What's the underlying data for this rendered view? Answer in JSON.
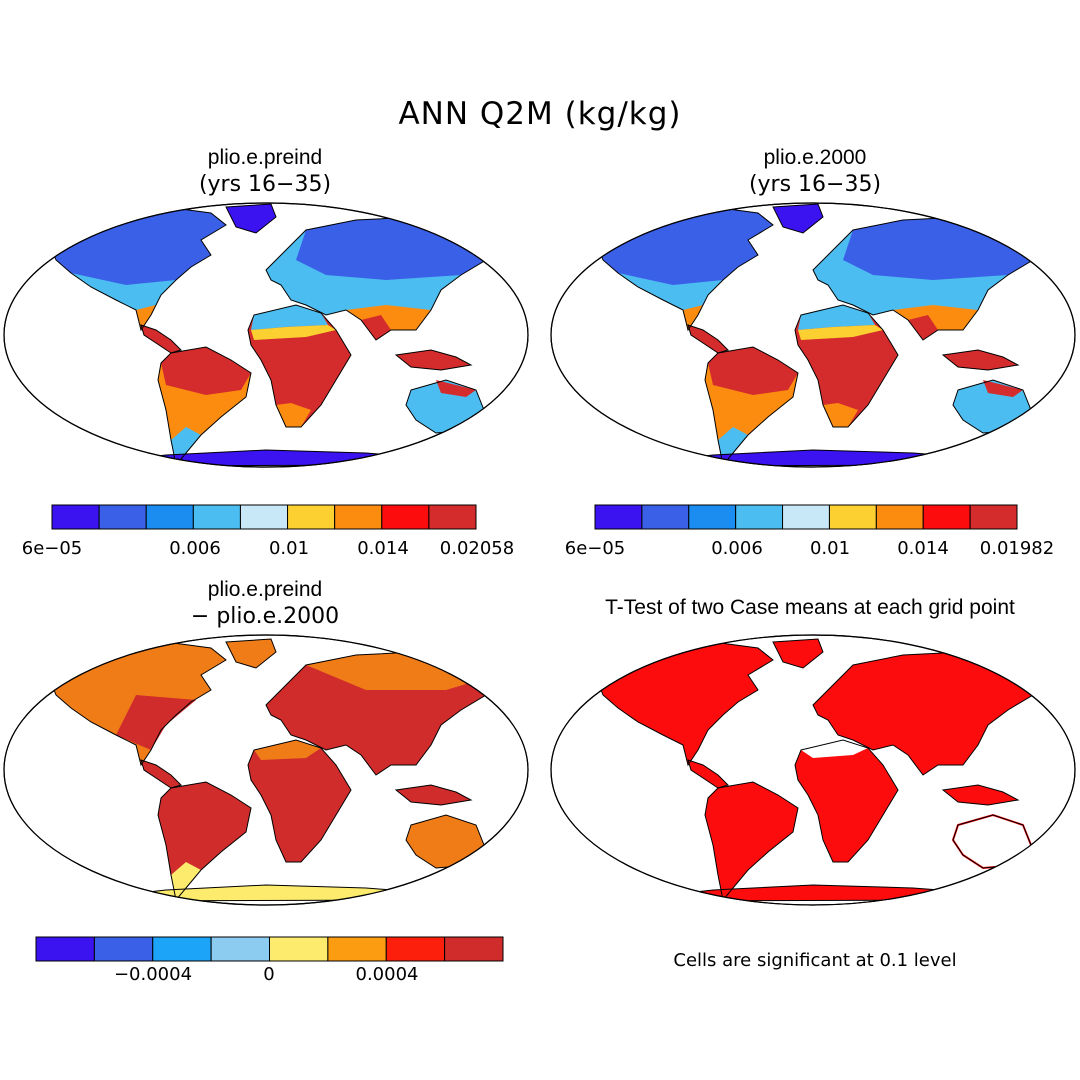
{
  "figure_title": "ANN Q2M (kg/kg)",
  "panels": [
    {
      "title": "plio.e.preind",
      "subtitle": "(yrs 16−35)",
      "field": "humidity"
    },
    {
      "title": "plio.e.2000",
      "subtitle": "(yrs 16−35)",
      "field": "humidity"
    },
    {
      "title": "plio.e.preind",
      "subtitle": "− plio.e.2000",
      "field": "difference"
    },
    {
      "title": "T-Test of two Case means at each grid point",
      "subtitle": "",
      "field": "significance"
    }
  ],
  "colorbars": [
    {
      "colors": [
        "#3b12f0",
        "#3b60e8",
        "#1c8df0",
        "#4cbdf0",
        "#c8e8f8",
        "#fcd030",
        "#fc8c10",
        "#fc0c0c",
        "#d42c2c"
      ],
      "labels": [
        "6e−05",
        "0.006",
        "0.01",
        "0.014",
        "0.02058"
      ]
    },
    {
      "colors": [
        "#3b12f0",
        "#3b60e8",
        "#1c8df0",
        "#4cbdf0",
        "#c8e8f8",
        "#fcd030",
        "#fc8c10",
        "#fc0c0c",
        "#d42c2c"
      ],
      "labels": [
        "6e−05",
        "0.006",
        "0.01",
        "0.014",
        "0.01982"
      ]
    },
    {
      "colors": [
        "#3b12f0",
        "#3b60e8",
        "#1ca4f8",
        "#8cccf0",
        "#fceb6c",
        "#fc9c10",
        "#fc200c",
        "#d02c2c"
      ],
      "labels": [
        "−0.0004",
        "0",
        "0.0004"
      ]
    }
  ],
  "significance_note": "Cells are significant at 0.1 level",
  "colors": {
    "land_warm": "#d42c2c",
    "land_orange": "#fc8c10",
    "land_yellow": "#fcd030",
    "land_lightblue": "#4cbdf0",
    "land_blue": "#3b60e8",
    "land_deepblue": "#3b12f0",
    "diff_red": "#d02c2c",
    "diff_orange": "#f07c18",
    "diff_yellow": "#fceb6c",
    "sig_red": "#fc0c0c"
  }
}
